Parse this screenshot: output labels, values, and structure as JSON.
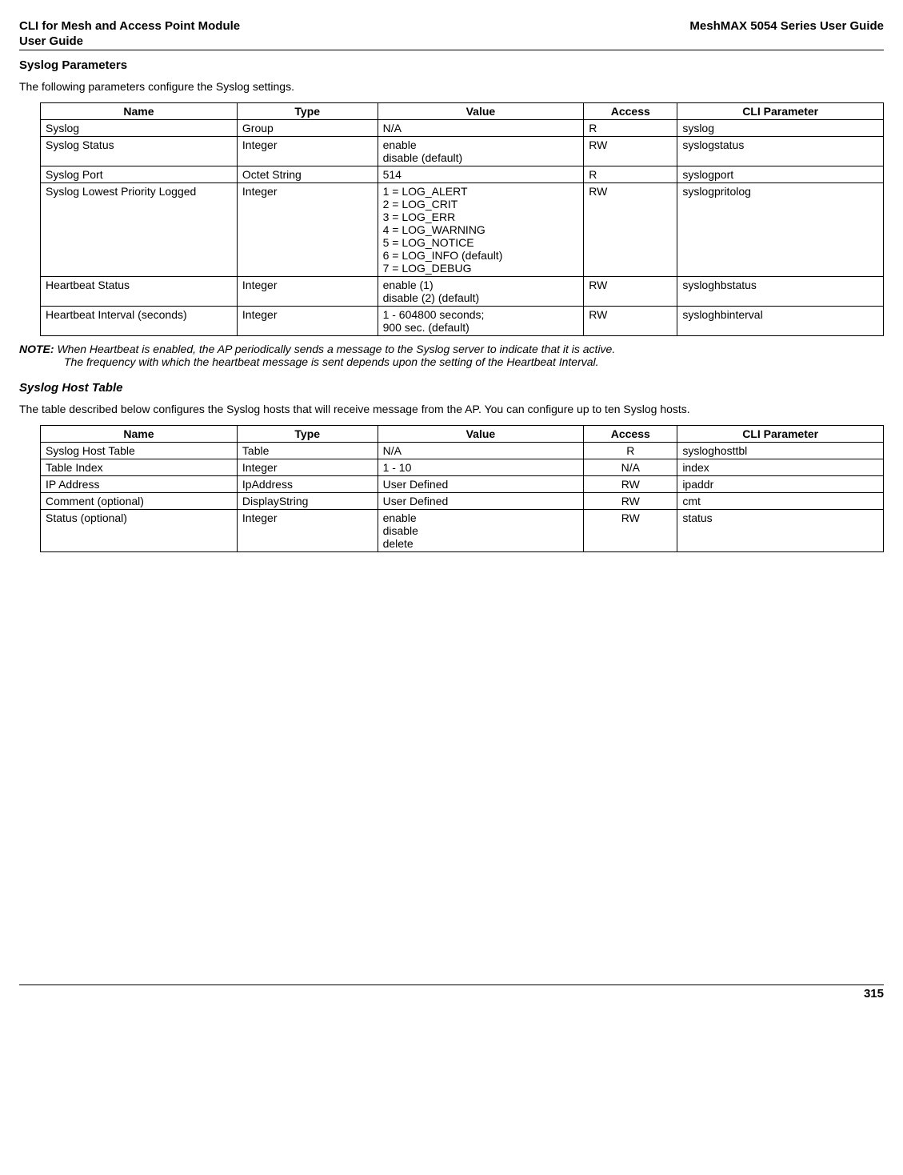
{
  "header": {
    "left_line1": "CLI for Mesh and Access Point Module",
    "left_line2": " User Guide",
    "right": "MeshMAX 5054 Series User Guide"
  },
  "section1": {
    "title": "Syslog Parameters",
    "intro": "The following parameters configure the Syslog settings.",
    "cols": {
      "name": "Name",
      "type": "Type",
      "value": "Value",
      "access": "Access",
      "cli": "CLI Parameter"
    },
    "rows": [
      {
        "name": "Syslog",
        "type": "Group",
        "value": "N/A",
        "access": "R",
        "cli": "syslog"
      },
      {
        "name": "Syslog Status",
        "type": "Integer",
        "value": "enable\ndisable (default)",
        "access": "RW",
        "cli": "syslogstatus"
      },
      {
        "name": "Syslog Port",
        "type": "Octet String",
        "value": "514",
        "access": "R",
        "cli": "syslogport"
      },
      {
        "name": "Syslog Lowest Priority Logged",
        "type": "Integer",
        "value": "1 = LOG_ALERT\n2 = LOG_CRIT\n3 = LOG_ERR\n4 = LOG_WARNING\n5 = LOG_NOTICE\n6 = LOG_INFO (default)\n7 = LOG_DEBUG",
        "access": "RW",
        "cli": "syslogpritolog"
      },
      {
        "name": "Heartbeat Status",
        "type": "Integer",
        "value": "enable (1)\ndisable (2) (default)",
        "access": "RW",
        "cli": "sysloghbstatus"
      },
      {
        "name": "Heartbeat Interval (seconds)",
        "type": "Integer",
        "value": "1 - 604800 seconds;\n900 sec. (default)",
        "access": "RW",
        "cli": "sysloghbinterval"
      }
    ],
    "note_label": "NOTE:",
    "note_line1": "When Heartbeat is enabled, the AP periodically sends a message to the Syslog server to indicate that it is active.",
    "note_line2": "The frequency with which the heartbeat message is sent depends upon the setting of the Heartbeat Interval."
  },
  "section2": {
    "title": "Syslog Host Table",
    "intro": "The table described below configures the Syslog hosts that will receive message from the AP. You can configure up to ten Syslog hosts.",
    "cols": {
      "name": "Name",
      "type": "Type",
      "value": "Value",
      "access": "Access",
      "cli": "CLI Parameter"
    },
    "rows": [
      {
        "name": "Syslog Host Table",
        "type": "Table",
        "value": "N/A",
        "access": "R",
        "cli": "sysloghosttbl"
      },
      {
        "name": "Table Index",
        "type": "Integer",
        "value": "1 - 10",
        "access": "N/A",
        "cli": "index"
      },
      {
        "name": "IP Address",
        "type": "IpAddress",
        "value": "User Defined",
        "access": "RW",
        "cli": "ipaddr"
      },
      {
        "name": "Comment (optional)",
        "type": "DisplayString",
        "value": "User Defined",
        "access": "RW",
        "cli": "cmt"
      },
      {
        "name": "Status (optional)",
        "type": "Integer",
        "value": "enable\ndisable\ndelete",
        "access": "RW",
        "cli": "status"
      }
    ]
  },
  "footer": {
    "page": "315"
  }
}
